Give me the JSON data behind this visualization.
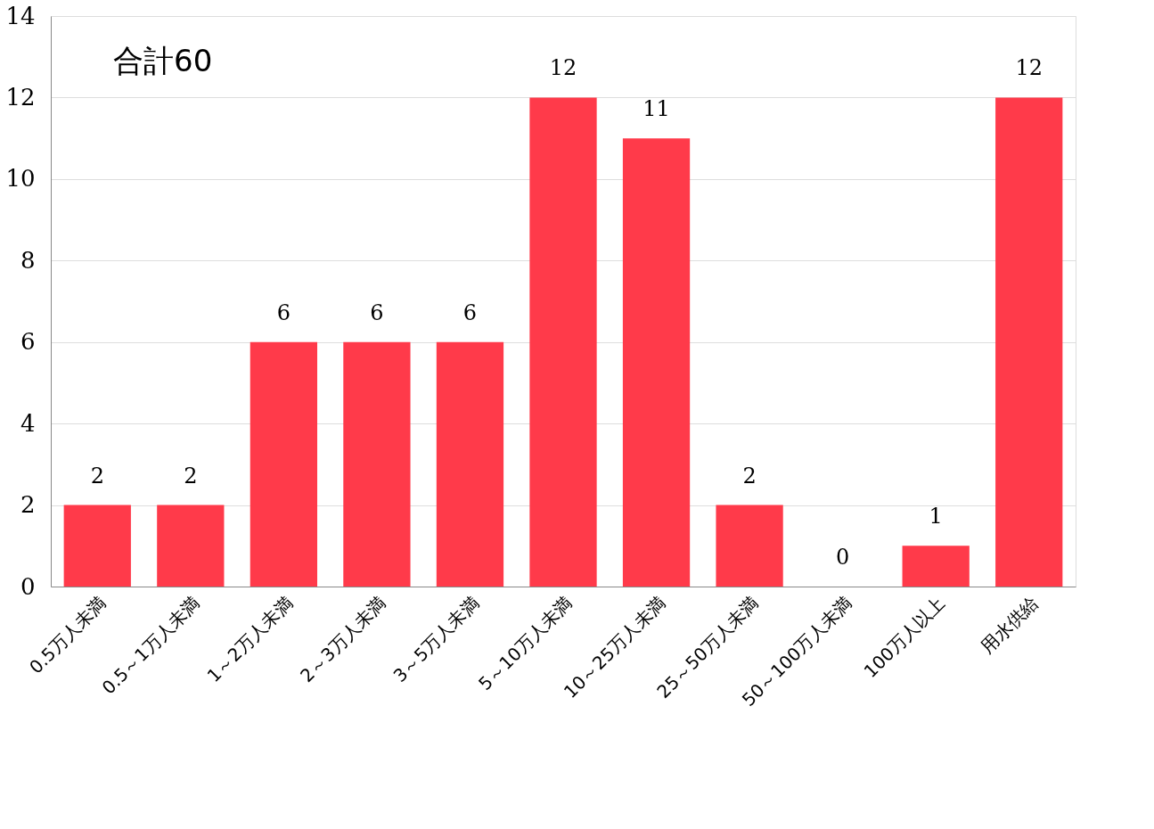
{
  "chart_data": {
    "type": "bar",
    "categories": [
      "0.5万人未満",
      "0.5～1万人未満",
      "1～2万人未満",
      "2～3万人未満",
      "3～5万人未満",
      "5～10万人未満",
      "10～25万人未満",
      "25～50万人未満",
      "50～100万人未満",
      "100万人以上",
      "用水供給"
    ],
    "values": [
      2,
      2,
      6,
      6,
      6,
      12,
      11,
      2,
      0,
      1,
      12
    ],
    "color": "#ff3a4a",
    "ylim": [
      0,
      14
    ],
    "yticks": [
      0,
      2,
      4,
      6,
      8,
      10,
      12,
      14
    ],
    "grid": "y",
    "data_labels": true,
    "annotations": [
      "合計60"
    ]
  }
}
